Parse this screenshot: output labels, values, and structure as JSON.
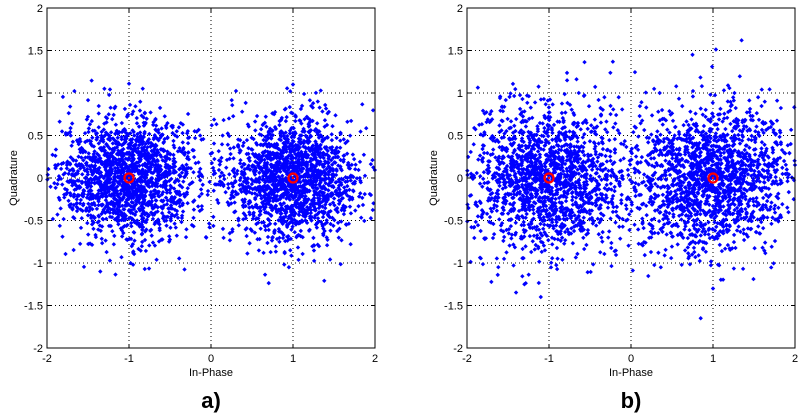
{
  "chart_data": [
    {
      "type": "scatter",
      "panel_label": "a)",
      "xlabel": "In-Phase",
      "ylabel": "Quadrature",
      "xlim": [
        -2,
        2
      ],
      "ylim": [
        -2,
        2
      ],
      "x_ticks": [
        -2,
        -1,
        0,
        1,
        2
      ],
      "y_ticks": [
        -2,
        -1.5,
        -1,
        -0.5,
        0,
        0.5,
        1,
        1.5,
        2
      ],
      "x_tick_labels": [
        "-2",
        "-1",
        "0",
        "1",
        "2"
      ],
      "y_tick_labels": [
        "-2",
        "-1.5",
        "-1",
        "-0.5",
        "0",
        "0.5",
        "1",
        "1.5",
        "2"
      ],
      "grid": true,
      "grid_style": "dotted",
      "colors": {
        "samples": "#0000ff",
        "reference": "#ff0000"
      },
      "reference_points": [
        {
          "x": -1,
          "y": 0
        },
        {
          "x": 1,
          "y": 0
        }
      ],
      "clusters": [
        {
          "center": [
            -1,
            0
          ],
          "x_spread": 0.42,
          "y_spread": 0.35,
          "count": 1700
        },
        {
          "center": [
            1,
            0
          ],
          "x_spread": 0.42,
          "y_spread": 0.35,
          "count": 1700
        }
      ],
      "outlier_points": [
        {
          "x": -1.3,
          "y": 1.05
        },
        {
          "x": -1.35,
          "y": -1.1
        },
        {
          "x": -0.95,
          "y": -1.02
        },
        {
          "x": 1.0,
          "y": 1.1
        },
        {
          "x": 0.95,
          "y": -1.05
        },
        {
          "x": 0.38,
          "y": 0.78
        },
        {
          "x": 1.65,
          "y": -0.55
        },
        {
          "x": 1.95,
          "y": -0.2
        },
        {
          "x": -1.9,
          "y": 0.15
        },
        {
          "x": -0.2,
          "y": 0.55
        },
        {
          "x": -0.15,
          "y": 0.02
        },
        {
          "x": 0.25,
          "y": -0.2
        }
      ]
    },
    {
      "type": "scatter",
      "panel_label": "b)",
      "xlabel": "In-Phase",
      "ylabel": "Quadrature",
      "xlim": [
        -2,
        2
      ],
      "ylim": [
        -2,
        2
      ],
      "x_ticks": [
        -2,
        -1,
        0,
        1,
        2
      ],
      "y_ticks": [
        -2,
        -1.5,
        -1,
        -0.5,
        0,
        0.5,
        1,
        1.5,
        2
      ],
      "x_tick_labels": [
        "-2",
        "-1",
        "0",
        "1",
        "2"
      ],
      "y_tick_labels": [
        "-2",
        "-1.5",
        "-1",
        "-0.5",
        "0",
        "0.5",
        "1",
        "1.5",
        "2"
      ],
      "grid": true,
      "grid_style": "dotted",
      "colors": {
        "samples": "#0000ff",
        "reference": "#ff0000"
      },
      "reference_points": [
        {
          "x": -1,
          "y": 0
        },
        {
          "x": 1,
          "y": 0
        }
      ],
      "clusters": [
        {
          "center": [
            -1,
            0
          ],
          "x_spread": 0.48,
          "y_spread": 0.42,
          "count": 1700
        },
        {
          "center": [
            1,
            0
          ],
          "x_spread": 0.48,
          "y_spread": 0.42,
          "count": 1700
        }
      ],
      "outlier_points": [
        {
          "x": 0.75,
          "y": 1.45
        },
        {
          "x": 0.85,
          "y": -1.65
        },
        {
          "x": -1.1,
          "y": -1.4
        },
        {
          "x": -1.3,
          "y": -1.25
        },
        {
          "x": 1.0,
          "y": -1.3
        },
        {
          "x": 0.35,
          "y": 1.0
        },
        {
          "x": -0.15,
          "y": 0.95
        },
        {
          "x": 1.9,
          "y": 0.1
        },
        {
          "x": -1.95,
          "y": 0.05
        },
        {
          "x": -0.05,
          "y": -0.25
        },
        {
          "x": 0.1,
          "y": -0.2
        },
        {
          "x": 1.55,
          "y": 0.95
        }
      ]
    }
  ]
}
